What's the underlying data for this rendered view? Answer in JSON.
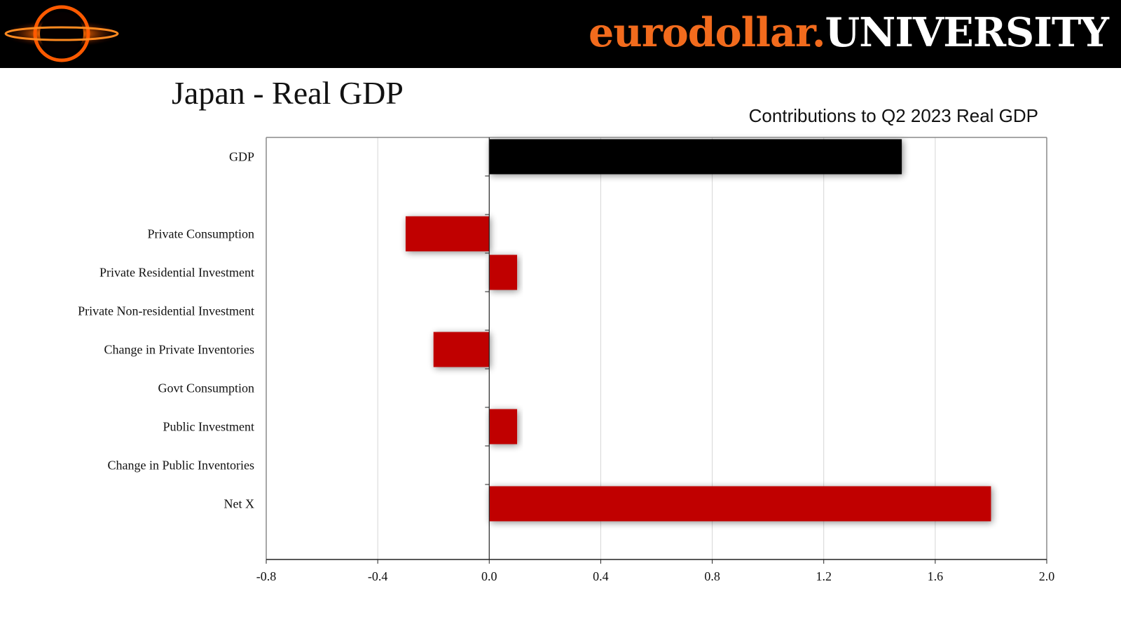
{
  "brand": {
    "part1": "eurodollar.",
    "part2": "UNIVERSITY"
  },
  "logo": {
    "icon": "black-hole-logo-icon"
  },
  "slide_title": "Japan - Real GDP",
  "colors": {
    "banner": "#000000",
    "brand_orange": "#f26b1d",
    "gdp_bar": "#000000",
    "component_bar": "#c00000"
  },
  "chart_data": {
    "type": "bar",
    "orientation": "horizontal",
    "title": "Contributions to Q2 2023 Real GDP",
    "xlabel": "",
    "ylabel": "",
    "categories": [
      "GDP",
      "",
      "Private Consumption",
      "Private Residential Investment",
      "Private Non-residential Investment",
      "Change in Private Inventories",
      "Govt Consumption",
      "Public Investment",
      "Change in Public Inventories",
      "Net X"
    ],
    "values": [
      1.48,
      null,
      -0.3,
      0.1,
      0.0,
      -0.2,
      0.0,
      0.1,
      0.0,
      1.8
    ],
    "xlim": [
      -0.8,
      2.0
    ],
    "xticks": [
      "-0.8",
      "-0.4",
      "0.0",
      "0.4",
      "0.8",
      "1.2",
      "1.6",
      "2.0"
    ],
    "grid": "vertical",
    "legend": "none"
  }
}
